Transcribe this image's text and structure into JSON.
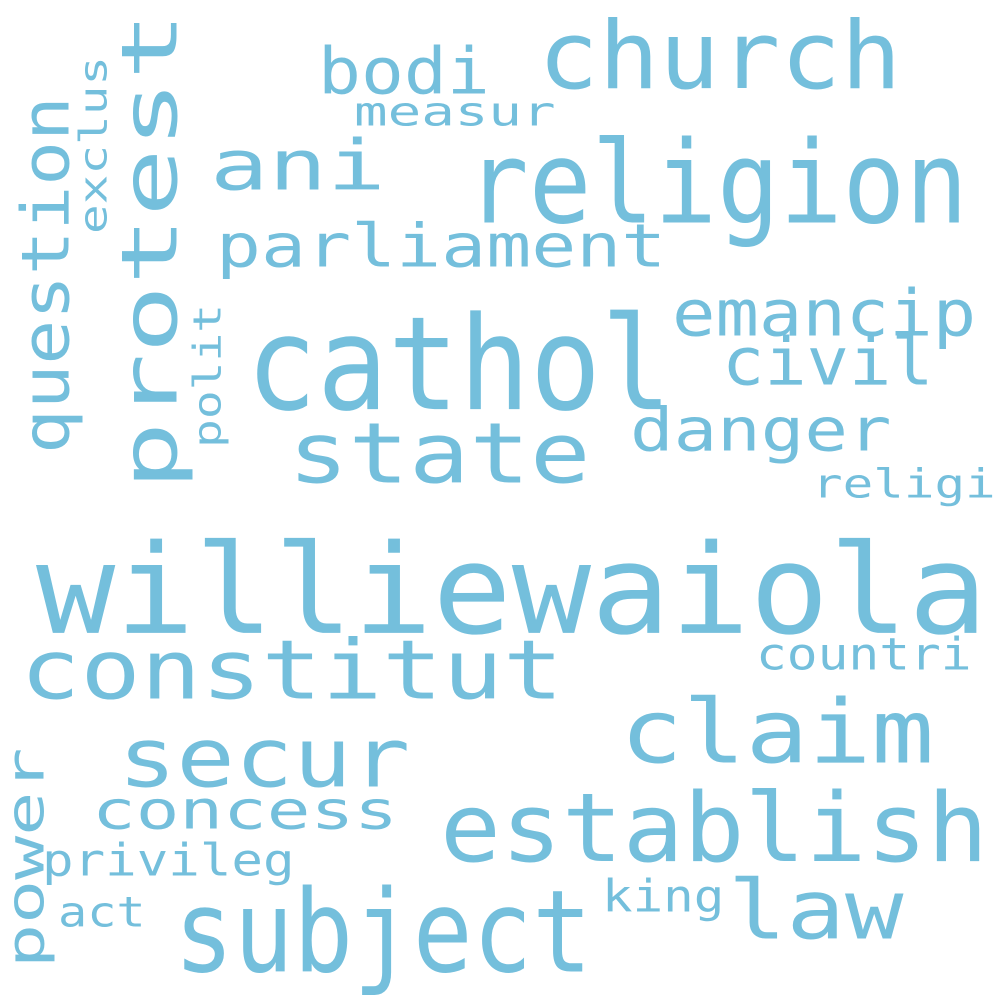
{
  "palette": {
    "word_color": "#74bfdc",
    "background": "#ffffff"
  },
  "words": {
    "williewaiola": "williewaiola",
    "cathol": "cathol",
    "protest": "protest",
    "religion": "religion",
    "church": "church",
    "ani": "ani",
    "state": "state",
    "parliament": "parliament",
    "establish": "establish",
    "subject": "subject",
    "constitut": "constitut",
    "claim": "claim",
    "secur": "secur",
    "law": "law",
    "question": "question",
    "emancip": "emancip",
    "danger": "danger",
    "civil": "civil",
    "bodi": "bodi",
    "concess": "concess",
    "power": "power",
    "privileg": "privileg",
    "exclus": "exclus",
    "measur": "measur",
    "polit": "polit",
    "religi": "religi",
    "countri": "countri",
    "act": "act",
    "king": "king"
  }
}
